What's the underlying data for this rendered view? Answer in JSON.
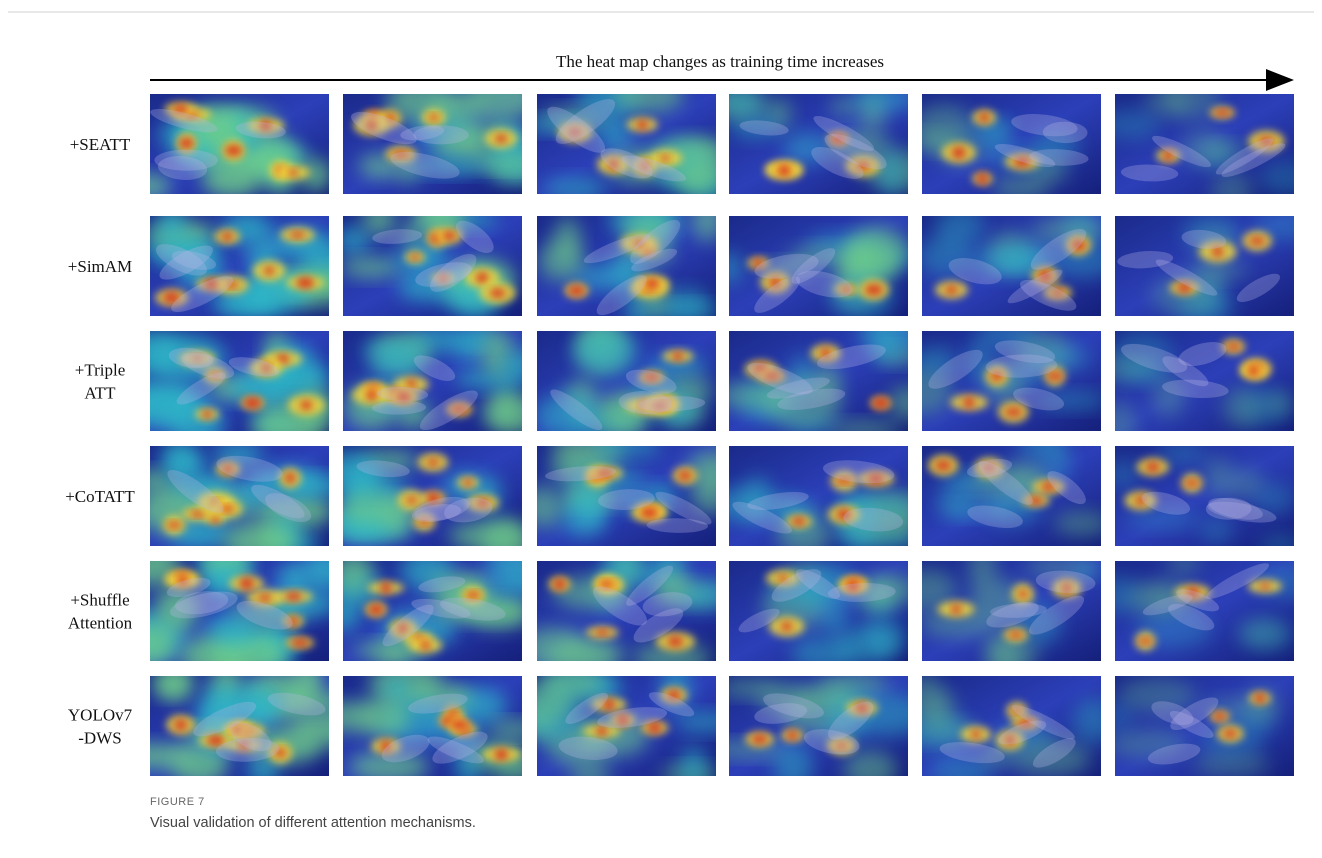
{
  "figure": {
    "arrow_text": "The heat map changes as training time increases",
    "rows": [
      {
        "label": [
          "+SEATT"
        ]
      },
      {
        "label": [
          "+SimAM"
        ]
      },
      {
        "label": [
          "+Triple",
          "ATT"
        ]
      },
      {
        "label": [
          "+CoTATT"
        ]
      },
      {
        "label": [
          "+Shuffle",
          "Attention"
        ]
      },
      {
        "label": [
          "YOLOv7",
          "-DWS"
        ]
      }
    ],
    "caption_label": "FIGURE 7",
    "caption_text": "Visual validation of different attention mechanisms."
  }
}
